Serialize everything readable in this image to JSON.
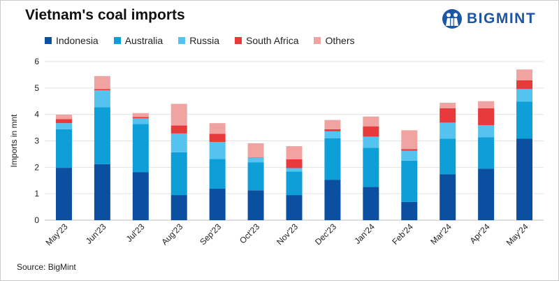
{
  "header": {
    "title": "Vietnam's coal imports",
    "brand": "BIGMINT"
  },
  "footer": {
    "source": "Source: BigMint"
  },
  "chart_data": {
    "type": "bar",
    "stacked": true,
    "title": "Vietnam's coal imports",
    "xlabel": "",
    "ylabel": "Imports in mnt",
    "ylim": [
      0,
      6
    ],
    "yticks": [
      0,
      1,
      2,
      3,
      4,
      5,
      6
    ],
    "grid": true,
    "legend_position": "top-left",
    "categories": [
      "May'23",
      "Jun'23",
      "Jul'23",
      "Aug'23",
      "Sep'23",
      "Oct'23",
      "Nov'23",
      "Dec'23",
      "Jan'24",
      "Feb'24",
      "Mar'24",
      "Apr'24",
      "May'24"
    ],
    "series": [
      {
        "name": "Indonesia",
        "color": "#0b4fa0",
        "values": [
          1.98,
          2.12,
          1.82,
          0.95,
          1.19,
          1.13,
          0.95,
          1.53,
          1.26,
          0.69,
          1.74,
          1.95,
          3.08
        ]
      },
      {
        "name": "Australia",
        "color": "#0e9ed8",
        "values": [
          1.46,
          2.15,
          1.82,
          1.62,
          1.13,
          1.06,
          0.89,
          1.57,
          1.48,
          1.56,
          1.34,
          1.19,
          1.4
        ]
      },
      {
        "name": "Russia",
        "color": "#55c3ef",
        "values": [
          0.23,
          0.64,
          0.21,
          0.71,
          0.64,
          0.18,
          0.13,
          0.26,
          0.42,
          0.38,
          0.61,
          0.45,
          0.48
        ]
      },
      {
        "name": "South Africa",
        "color": "#e83a3a",
        "values": [
          0.15,
          0.05,
          0.05,
          0.3,
          0.31,
          0.01,
          0.33,
          0.08,
          0.39,
          0.06,
          0.54,
          0.64,
          0.33
        ]
      },
      {
        "name": "Others",
        "color": "#f0a3a1",
        "values": [
          0.17,
          0.49,
          0.15,
          0.82,
          0.4,
          0.53,
          0.5,
          0.35,
          0.37,
          0.71,
          0.21,
          0.27,
          0.41
        ]
      }
    ]
  }
}
